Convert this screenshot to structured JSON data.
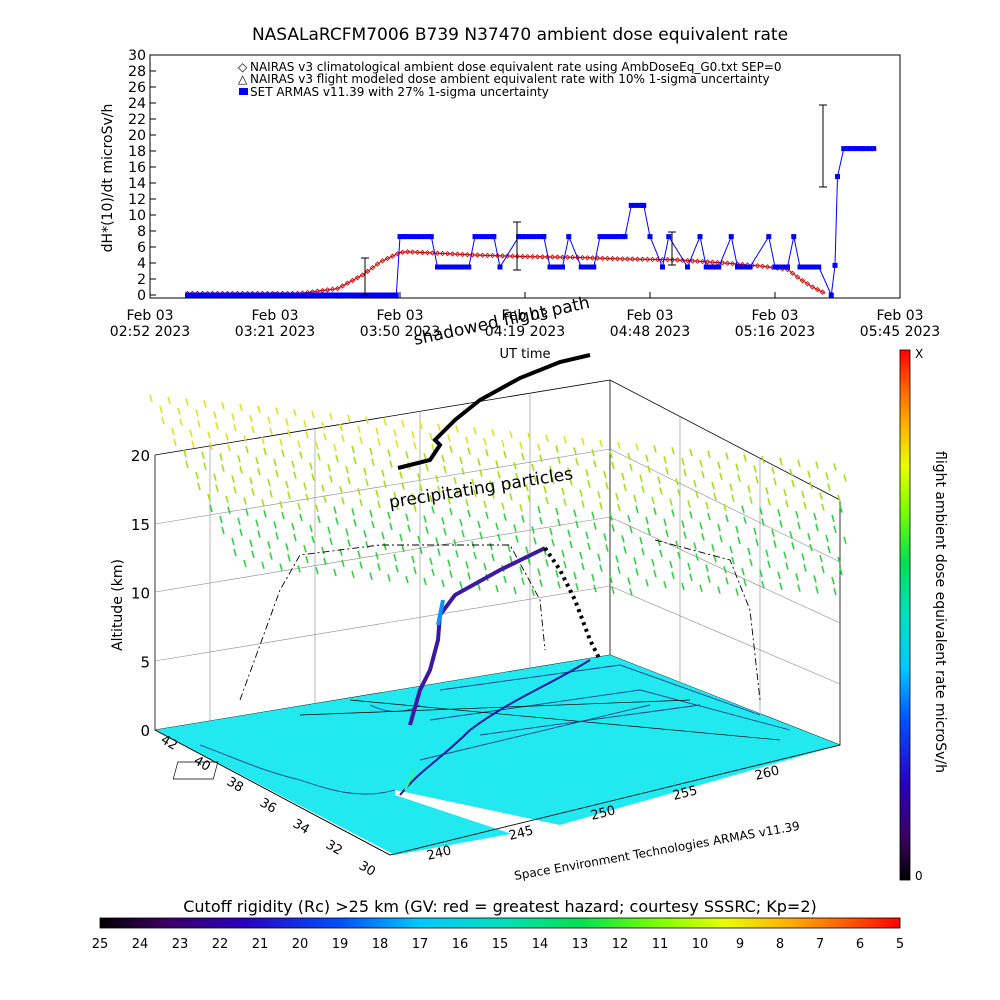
{
  "chart_data": [
    {
      "type": "line",
      "title": "NASALaRCFM7006  B739 N37470 ambient dose equivalent rate",
      "ylabel": "dH*(10)/dt microSv/h",
      "xlabel": "UT time",
      "ylim": [
        0,
        30
      ],
      "yticks": [
        0,
        2,
        4,
        6,
        8,
        10,
        12,
        14,
        16,
        18,
        20,
        22,
        24,
        26,
        28,
        30
      ],
      "xticks": [
        {
          "l1": "Feb 03",
          "l2": "02:52 2023"
        },
        {
          "l1": "Feb 03",
          "l2": "03:21 2023"
        },
        {
          "l1": "Feb 03",
          "l2": "03:50 2023"
        },
        {
          "l1": "Feb 03",
          "l2": "04:19 2023"
        },
        {
          "l1": "Feb 03",
          "l2": "04:48 2023"
        },
        {
          "l1": "Feb 03",
          "l2": "05:16 2023"
        },
        {
          "l1": "Feb 03",
          "l2": "05:45 2023"
        }
      ],
      "xlim": [
        0,
        6
      ],
      "legend": [
        "NAIRAS v3 climatological ambient dose equivalent rate using AmbDoseEq_G0.txt SEP=0",
        "NAIRAS v3 flight modeled dose ambient equivalent rate with 10% 1-sigma uncertainty",
        "SET ARMAS v11.39 with 27% 1-sigma uncertainty"
      ],
      "series": [
        {
          "name": "NAIRAS v3 climatological ambient dose equivalent rate using AmbDoseEq_G0.txt SEP=0",
          "color": "#cc0000",
          "x": [
            0.3,
            0.6,
            1.0,
            1.2,
            1.5,
            1.7,
            1.85,
            2.0,
            2.05,
            2.2,
            2.6,
            3.0,
            3.4,
            3.8,
            4.2,
            4.6,
            4.9,
            5.1,
            5.2,
            5.3,
            5.4
          ],
          "values": [
            0.2,
            0.2,
            0.2,
            0.2,
            0.8,
            2.5,
            4.2,
            5.3,
            5.4,
            5.3,
            5.0,
            4.8,
            4.7,
            4.5,
            4.4,
            4.0,
            3.6,
            3.2,
            2.0,
            1.0,
            0.2
          ]
        },
        {
          "name": "SET ARMAS v11.39 with 27% 1-sigma uncertainty",
          "color": "#0000ff",
          "x": [
            0.3,
            0.6,
            1.0,
            1.5,
            1.97,
            2.0,
            2.05,
            2.25,
            2.3,
            2.55,
            2.6,
            2.75,
            2.8,
            2.95,
            3.0,
            3.15,
            3.2,
            3.3,
            3.35,
            3.45,
            3.55,
            3.6,
            3.8,
            3.85,
            3.95,
            4.0,
            4.1,
            4.15,
            4.3,
            4.4,
            4.45,
            4.55,
            4.65,
            4.7,
            4.8,
            4.95,
            5.0,
            5.1,
            5.15,
            5.2,
            5.22,
            5.3,
            5.35,
            5.45,
            5.48
          ],
          "values": [
            0,
            0,
            0,
            0,
            0,
            7.3,
            7.3,
            7.3,
            3.5,
            3.5,
            7.3,
            7.3,
            3.5,
            7.3,
            7.3,
            7.3,
            3.5,
            3.5,
            7.3,
            3.5,
            3.5,
            7.3,
            7.3,
            11.2,
            11.2,
            7.3,
            3.5,
            7.3,
            3.5,
            7.3,
            3.5,
            3.5,
            7.3,
            3.5,
            3.5,
            7.3,
            3.5,
            3.5,
            7.3,
            3.5,
            3.5,
            3.5,
            3.5,
            0,
            3.7
          ],
          "note_end": [
            5.5,
            5.55,
            5.6,
            5.7,
            5.8
          ],
          "tail_values": [
            14.8,
            18.3,
            18.3,
            18.3,
            18.3
          ]
        }
      ]
    },
    {
      "type": "scatter",
      "zlabel": "Altitude (km)",
      "zlim": [
        0,
        20
      ],
      "zticks": [
        0,
        5,
        10,
        15,
        20
      ],
      "lat_ticks": [
        42,
        40,
        38,
        36,
        34,
        32,
        30
      ],
      "lon_ticks": [
        240,
        245,
        250,
        255,
        260
      ],
      "annotations": [
        "shadowed flight path",
        "precipitating particles"
      ],
      "credit": "Space Environment Technologies ARMAS v11.39",
      "colorbar": {
        "label": "flight ambient dose equivalent rate microSv/h",
        "top": "X",
        "bottom": "0"
      }
    }
  ],
  "bottom_bar": {
    "title": "Cutoff rigidity (Rc) >25 km (GV: red = greatest hazard; courtesy SSSRC; Kp=2)",
    "ticks": [
      25,
      24,
      23,
      22,
      21,
      20,
      19,
      18,
      17,
      16,
      15,
      14,
      13,
      12,
      11,
      10,
      9,
      8,
      7,
      6,
      5
    ]
  }
}
